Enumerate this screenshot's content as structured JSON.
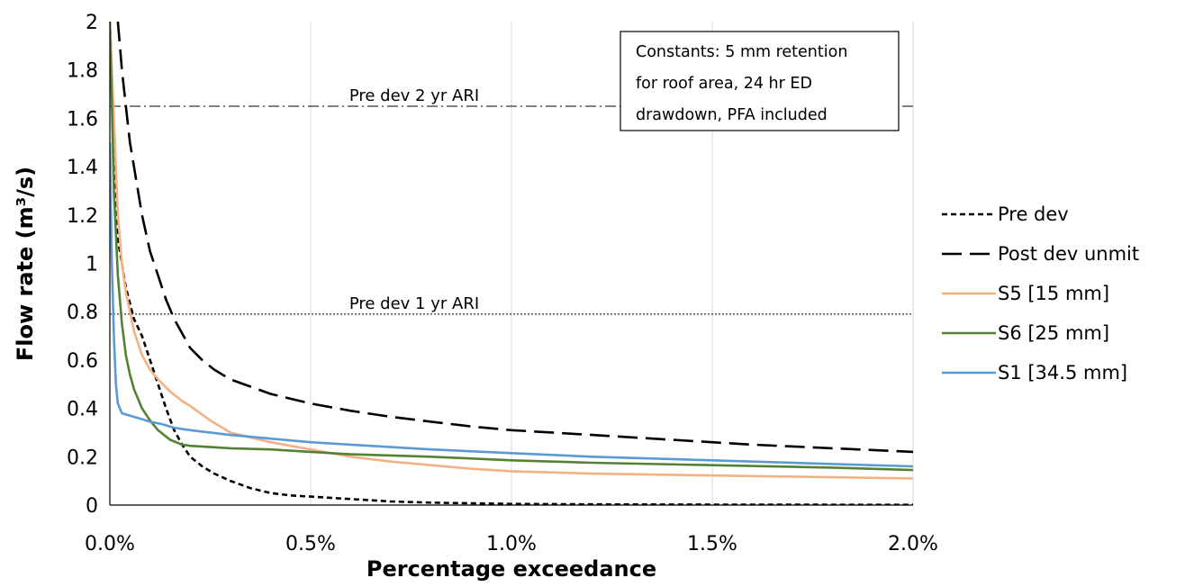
{
  "chart_data": {
    "type": "line",
    "xlabel": "Percentage exceedance",
    "ylabel": "Flow rate (m³/s)",
    "xlim": [
      0,
      0.02
    ],
    "ylim": [
      0,
      2
    ],
    "x_ticks": [
      {
        "value": 0,
        "label": "0.0%"
      },
      {
        "value": 0.005,
        "label": "0.5%"
      },
      {
        "value": 0.01,
        "label": "1.0%"
      },
      {
        "value": 0.015,
        "label": "1.5%"
      },
      {
        "value": 0.02,
        "label": "2.0%"
      }
    ],
    "y_ticks": [
      {
        "value": 0,
        "label": "0"
      },
      {
        "value": 0.2,
        "label": "0.2"
      },
      {
        "value": 0.4,
        "label": "0.4"
      },
      {
        "value": 0.6,
        "label": "0.6"
      },
      {
        "value": 0.8,
        "label": "0.8"
      },
      {
        "value": 1.0,
        "label": "1"
      },
      {
        "value": 1.2,
        "label": "1.2"
      },
      {
        "value": 1.4,
        "label": "1.4"
      },
      {
        "value": 1.6,
        "label": "1.6"
      },
      {
        "value": 1.8,
        "label": "1.8"
      },
      {
        "value": 2.0,
        "label": "2"
      }
    ],
    "grid": "vertical",
    "legend_position": "right",
    "note_lines": [
      "Constants: 5 mm retention",
      "for roof area, 24 hr ED",
      "drawdown, PFA included"
    ],
    "reference_lines": [
      {
        "label": "Pre dev 2 yr ARI",
        "y": 1.65,
        "style": "dash-dot"
      },
      {
        "label": "Pre dev 1 yr ARI",
        "y": 0.79,
        "style": "dotted"
      }
    ],
    "series": [
      {
        "name": "Pre dev",
        "color": "#000000",
        "style": "short-dash",
        "x": [
          0,
          0.0002,
          0.0004,
          0.0006,
          0.0008,
          0.001,
          0.0012,
          0.0014,
          0.0016,
          0.0018,
          0.002,
          0.0023,
          0.0026,
          0.003,
          0.0035,
          0.004,
          0.0045,
          0.005,
          0.006,
          0.007,
          0.008,
          0.01,
          0.012,
          0.015,
          0.02
        ],
        "y": [
          2.0,
          1.1,
          0.9,
          0.77,
          0.7,
          0.6,
          0.5,
          0.4,
          0.31,
          0.25,
          0.2,
          0.16,
          0.13,
          0.1,
          0.07,
          0.05,
          0.04,
          0.035,
          0.025,
          0.015,
          0.01,
          0.005,
          0.003,
          0.002,
          0.001
        ]
      },
      {
        "name": "Post dev unmit",
        "color": "#000000",
        "style": "long-dash",
        "x": [
          0.0002,
          0.0003,
          0.0004,
          0.0005,
          0.0006,
          0.0008,
          0.001,
          0.0012,
          0.0014,
          0.0016,
          0.0018,
          0.002,
          0.0023,
          0.0026,
          0.003,
          0.0035,
          0.004,
          0.005,
          0.006,
          0.007,
          0.008,
          0.009,
          0.01,
          0.012,
          0.014,
          0.016,
          0.018,
          0.02
        ],
        "y": [
          2.0,
          1.8,
          1.65,
          1.5,
          1.4,
          1.2,
          1.05,
          0.95,
          0.85,
          0.77,
          0.71,
          0.65,
          0.6,
          0.56,
          0.52,
          0.49,
          0.46,
          0.42,
          0.39,
          0.365,
          0.345,
          0.325,
          0.31,
          0.29,
          0.27,
          0.25,
          0.235,
          0.22
        ]
      },
      {
        "name": "S5 [15 mm]",
        "color": "#F4B183",
        "style": "solid",
        "x": [
          0,
          0.0001,
          0.0002,
          0.0003,
          0.0004,
          0.0005,
          0.0006,
          0.0008,
          0.001,
          0.0012,
          0.0015,
          0.0018,
          0.002,
          0.0025,
          0.003,
          0.0035,
          0.004,
          0.005,
          0.006,
          0.007,
          0.008,
          0.009,
          0.01,
          0.012,
          0.014,
          0.016,
          0.018,
          0.02
        ],
        "y": [
          2.0,
          1.6,
          1.2,
          1.0,
          0.88,
          0.8,
          0.72,
          0.62,
          0.56,
          0.52,
          0.47,
          0.43,
          0.41,
          0.35,
          0.3,
          0.28,
          0.26,
          0.23,
          0.2,
          0.18,
          0.165,
          0.15,
          0.14,
          0.13,
          0.125,
          0.12,
          0.115,
          0.11
        ]
      },
      {
        "name": "S6 [25 mm]",
        "color": "#548235",
        "style": "solid",
        "x": [
          0,
          0.0001,
          0.0002,
          0.0003,
          0.0004,
          0.0005,
          0.0006,
          0.0008,
          0.001,
          0.0012,
          0.0015,
          0.0018,
          0.002,
          0.0025,
          0.003,
          0.004,
          0.005,
          0.006,
          0.008,
          0.01,
          0.012,
          0.015,
          0.018,
          0.02
        ],
        "y": [
          2.0,
          1.3,
          0.95,
          0.75,
          0.62,
          0.54,
          0.48,
          0.4,
          0.35,
          0.31,
          0.27,
          0.25,
          0.245,
          0.24,
          0.235,
          0.23,
          0.22,
          0.21,
          0.2,
          0.185,
          0.175,
          0.165,
          0.155,
          0.145
        ]
      },
      {
        "name": "S1 [34.5 mm]",
        "color": "#5B9BD5",
        "style": "solid",
        "x": [
          0,
          5e-05,
          0.0001,
          0.00015,
          0.0002,
          0.0003,
          0.0005,
          0.0007,
          0.001,
          0.0013,
          0.0016,
          0.002,
          0.0025,
          0.003,
          0.004,
          0.005,
          0.006,
          0.008,
          0.01,
          0.012,
          0.015,
          0.018,
          0.02
        ],
        "y": [
          1.5,
          1.0,
          0.7,
          0.5,
          0.42,
          0.38,
          0.37,
          0.36,
          0.345,
          0.335,
          0.32,
          0.31,
          0.3,
          0.29,
          0.275,
          0.26,
          0.25,
          0.23,
          0.215,
          0.2,
          0.185,
          0.17,
          0.16
        ]
      }
    ]
  }
}
